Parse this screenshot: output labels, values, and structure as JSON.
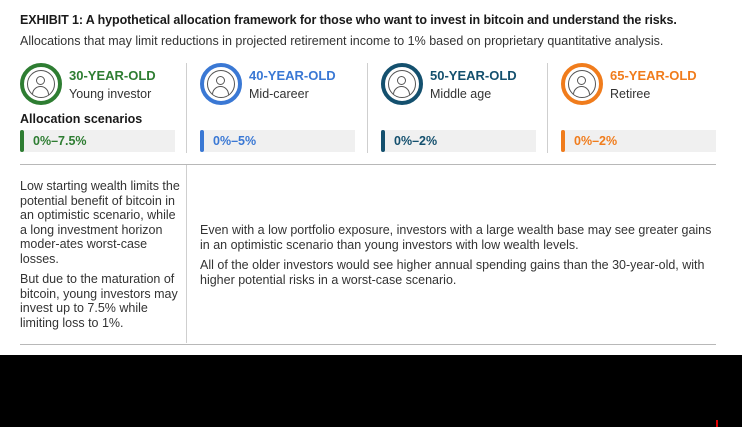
{
  "header": {
    "title": "EXHIBIT 1: A hypothetical allocation framework for those who want to invest in bitcoin and understand the risks.",
    "subtitle": "Allocations that may limit reductions in projected retirement income to 1% based on proprietary quantitative analysis."
  },
  "allocation_heading": "Allocation scenarios",
  "profiles": [
    {
      "age": "30-YEAR-OLD",
      "role": "Young investor",
      "range": "0%–7.5%",
      "color": "#2e7d32",
      "icon": "person-icon"
    },
    {
      "age": "40-YEAR-OLD",
      "role": "Mid-career",
      "range": "0%–5%",
      "color": "#3a78d4",
      "icon": "person-icon"
    },
    {
      "age": "50-YEAR-OLD",
      "role": "Middle age",
      "range": "0%–2%",
      "color": "#14506e",
      "icon": "person-icon"
    },
    {
      "age": "65-YEAR-OLD",
      "role": "Retiree",
      "range": "0%–2%",
      "color": "#f07c1c",
      "icon": "person-icon"
    }
  ],
  "left_notes": [
    "Low starting wealth limits the potential benefit of bitcoin in an optimistic scenario, while a long investment horizon moder-ates worst-case losses.",
    "But due to the maturation of bitcoin, young investors may invest up to 7.5% while limiting loss to 1%."
  ],
  "right_notes": [
    "Even with a low portfolio exposure, investors with a large wealth base may see greater gains in an optimistic scenario than young investors with low wealth levels.",
    "All of the older investors would see higher annual spending gains than the 30-year-old, with higher potential risks in a worst-case scenario."
  ]
}
